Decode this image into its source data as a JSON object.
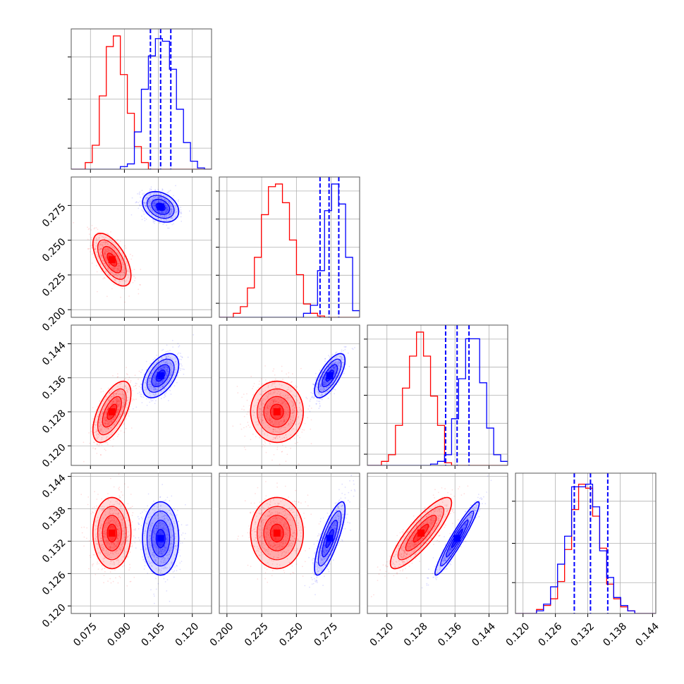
{
  "colors": {
    "red": "#ff0000",
    "blue": "#0000ff",
    "grid": "#b0b0b0",
    "frame": "#555555"
  },
  "chart_data": {
    "type": "corner",
    "parameters": 4,
    "grid": true,
    "series": [
      {
        "color": "#ff0000",
        "means": [
          0.0845,
          0.236,
          0.128,
          0.1335
        ],
        "stds": [
          0.0042,
          0.0095,
          0.0036,
          0.0033
        ],
        "correlations": [
          [
            0,
            1,
            -0.6
          ],
          [
            0,
            2,
            0.6
          ],
          [
            1,
            2,
            0.0
          ],
          [
            0,
            3,
            0.0
          ],
          [
            1,
            3,
            0.0
          ],
          [
            2,
            3,
            0.85
          ]
        ],
        "histograms": [
          [
            0,
            0,
            0.05,
            0.18,
            0.55,
            0.92,
            1.0,
            0.71,
            0.42,
            0.17,
            0.05,
            0,
            0,
            0,
            0,
            0,
            0,
            0,
            0,
            0
          ],
          [
            0,
            0,
            0.03,
            0.08,
            0.22,
            0.45,
            0.77,
            0.98,
            1.0,
            0.86,
            0.58,
            0.32,
            0.1,
            0.03,
            0.01,
            0,
            0,
            0,
            0,
            0
          ],
          [
            0,
            0,
            0.03,
            0.08,
            0.3,
            0.58,
            0.82,
            1.0,
            0.82,
            0.52,
            0.3,
            0.02,
            0,
            0,
            0,
            0,
            0,
            0,
            0,
            0
          ],
          [
            0,
            0,
            0,
            0.03,
            0.06,
            0.11,
            0.24,
            0.48,
            0.78,
            0.97,
            0.94,
            0.73,
            0.49,
            0.22,
            0.11,
            0.05,
            0.02,
            0,
            0,
            0
          ]
        ]
      },
      {
        "color": "#0000ff",
        "means": [
          0.106,
          0.274,
          0.1365,
          0.1325
        ],
        "stds": [
          0.004,
          0.0055,
          0.0026,
          0.0034
        ],
        "correlations": [
          [
            0,
            1,
            -0.3
          ],
          [
            0,
            2,
            0.5
          ],
          [
            1,
            2,
            0.7
          ],
          [
            0,
            3,
            0.0
          ],
          [
            1,
            3,
            0.8
          ],
          [
            2,
            3,
            0.95
          ]
        ],
        "histograms": [
          [
            0,
            0,
            0,
            0,
            0,
            0,
            0,
            0.02,
            0.04,
            0.28,
            0.6,
            0.85,
            0.98,
            0.96,
            0.75,
            0.45,
            0.2,
            0.06,
            0.01,
            0
          ],
          [
            0,
            0,
            0,
            0,
            0,
            0,
            0,
            0,
            0,
            0,
            0,
            0,
            0.03,
            0.09,
            0.35,
            0.8,
            1.0,
            0.85,
            0.45,
            0.05
          ],
          [
            0,
            0,
            0,
            0,
            0,
            0,
            0,
            0,
            0,
            0.01,
            0.03,
            0.08,
            0.35,
            0.65,
            0.95,
            0.95,
            0.62,
            0.28,
            0.08,
            0.03
          ],
          [
            0,
            0,
            0,
            0.02,
            0.07,
            0.2,
            0.37,
            0.58,
            0.95,
            0.95,
            0.97,
            0.8,
            0.47,
            0.27,
            0.12,
            0.06,
            0.02,
            0,
            0,
            0
          ]
        ],
        "quantiles": [
          [
            0.1015,
            0.106,
            0.1105
          ],
          [
            0.267,
            0.2735,
            0.2805
          ],
          [
            0.1338,
            0.1365,
            0.1393
          ],
          [
            0.1295,
            0.1325,
            0.1357
          ]
        ]
      }
    ],
    "axes": [
      {
        "range": [
          0.0665,
          0.1285
        ],
        "ticks": [
          0.075,
          0.09,
          0.105,
          0.12
        ],
        "tick_labels": [
          "0.075",
          "0.090",
          "0.105",
          "0.120"
        ],
        "hist_yticks": [
          0.15,
          0.5,
          0.8
        ]
      },
      {
        "range": [
          0.1945,
          0.2955
        ],
        "ticks": [
          0.2,
          0.225,
          0.25,
          0.275
        ],
        "tick_labels": [
          "0.200",
          "0.225",
          "0.250",
          "0.275"
        ],
        "hist_yticks": [
          0.1,
          0.3,
          0.5,
          0.7,
          0.9
        ]
      },
      {
        "range": [
          0.1154,
          0.1484
        ],
        "ticks": [
          0.12,
          0.128,
          0.136,
          0.144
        ],
        "tick_labels": [
          "0.120",
          "0.128",
          "0.136",
          "0.144"
        ],
        "hist_yticks": [
          0.08,
          0.3,
          0.5,
          0.7,
          0.9
        ]
      },
      {
        "range": [
          0.1186,
          0.1446
        ],
        "ticks": [
          0.12,
          0.126,
          0.132,
          0.138,
          0.144
        ],
        "tick_labels": [
          "0.120",
          "0.126",
          "0.132",
          "0.138",
          "0.144"
        ],
        "hist_yticks": [
          0.22,
          0.5,
          0.8
        ]
      }
    ]
  }
}
